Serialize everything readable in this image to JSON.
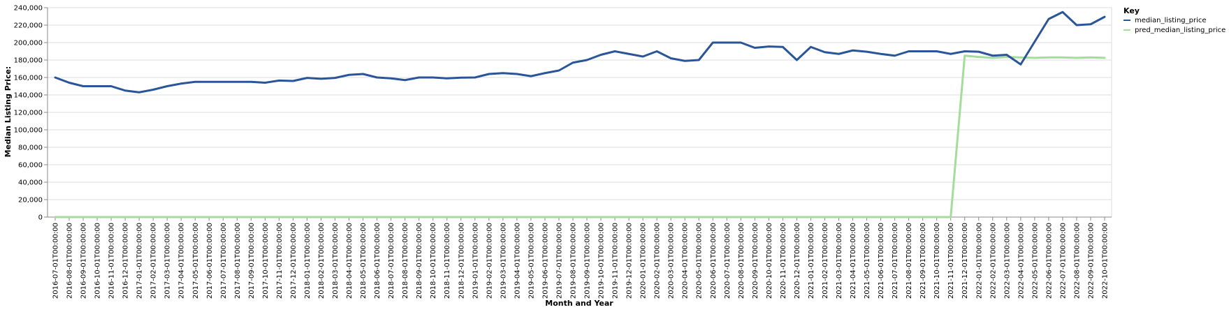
{
  "chart_data": {
    "type": "line",
    "xlabel": "Month and Year",
    "ylabel": "Median Listing Price:",
    "ylim": [
      0,
      240000
    ],
    "yticks": [
      0,
      20000,
      40000,
      60000,
      80000,
      100000,
      120000,
      140000,
      160000,
      180000,
      200000,
      220000,
      240000
    ],
    "ytick_labels": [
      "0",
      "20,000",
      "40,000",
      "60,000",
      "80,000",
      "100,000",
      "120,000",
      "140,000",
      "160,000",
      "180,000",
      "200,000",
      "220,000",
      "240,000"
    ],
    "grid": true,
    "legend_title": "Key",
    "legend_position": "top-right",
    "x": [
      "2016-07-01T00:00:00",
      "2016-08-01T00:00:00",
      "2016-09-01T00:00:00",
      "2016-10-01T00:00:00",
      "2016-11-01T00:00:00",
      "2016-12-01T00:00:00",
      "2017-01-01T00:00:00",
      "2017-02-01T00:00:00",
      "2017-03-01T00:00:00",
      "2017-04-01T00:00:00",
      "2017-05-01T00:00:00",
      "2017-06-01T00:00:00",
      "2017-07-01T00:00:00",
      "2017-08-01T00:00:00",
      "2017-09-01T00:00:00",
      "2017-10-01T00:00:00",
      "2017-11-01T00:00:00",
      "2017-12-01T00:00:00",
      "2018-01-01T00:00:00",
      "2018-02-01T00:00:00",
      "2018-03-01T00:00:00",
      "2018-04-01T00:00:00",
      "2018-05-01T00:00:00",
      "2018-06-01T00:00:00",
      "2018-07-01T00:00:00",
      "2018-08-01T00:00:00",
      "2018-09-01T00:00:00",
      "2018-10-01T00:00:00",
      "2018-11-01T00:00:00",
      "2018-12-01T00:00:00",
      "2019-01-01T00:00:00",
      "2019-02-01T00:00:00",
      "2019-03-01T00:00:00",
      "2019-04-01T00:00:00",
      "2019-05-01T00:00:00",
      "2019-06-01T00:00:00",
      "2019-07-01T00:00:00",
      "2019-08-01T00:00:00",
      "2019-09-01T00:00:00",
      "2019-10-01T00:00:00",
      "2019-11-01T00:00:00",
      "2019-12-01T00:00:00",
      "2020-01-01T00:00:00",
      "2020-02-01T00:00:00",
      "2020-03-01T00:00:00",
      "2020-04-01T00:00:00",
      "2020-05-01T00:00:00",
      "2020-06-01T00:00:00",
      "2020-07-01T00:00:00",
      "2020-08-01T00:00:00",
      "2020-09-01T00:00:00",
      "2020-10-01T00:00:00",
      "2020-11-01T00:00:00",
      "2020-12-01T00:00:00",
      "2021-01-01T00:00:00",
      "2021-02-01T00:00:00",
      "2021-03-01T00:00:00",
      "2021-04-01T00:00:00",
      "2021-05-01T00:00:00",
      "2021-06-01T00:00:00",
      "2021-07-01T00:00:00",
      "2021-08-01T00:00:00",
      "2021-09-01T00:00:00",
      "2021-10-01T00:00:00",
      "2021-11-01T00:00:00",
      "2021-12-01T00:00:00",
      "2022-01-01T00:00:00",
      "2022-02-01T00:00:00",
      "2022-03-01T00:00:00",
      "2022-04-01T00:00:00",
      "2022-05-01T00:00:00",
      "2022-06-01T00:00:00",
      "2022-07-01T00:00:00",
      "2022-08-01T00:00:00",
      "2022-09-01T00:00:00",
      "2022-10-01T00:00:00"
    ],
    "series": [
      {
        "name": "median_listing_price",
        "color": "#2a5599",
        "values": [
          160000,
          154000,
          150000,
          150000,
          150000,
          145000,
          143000,
          146000,
          150000,
          153000,
          155000,
          155000,
          155000,
          155000,
          155000,
          154000,
          156500,
          156000,
          159500,
          158500,
          159500,
          163000,
          164000,
          160000,
          159000,
          157000,
          160000,
          160000,
          159000,
          159800,
          160000,
          164000,
          165000,
          164000,
          161500,
          165000,
          168000,
          177000,
          180000,
          186000,
          190000,
          187000,
          184000,
          190000,
          182000,
          179000,
          180000,
          200000,
          200000,
          200000,
          194000,
          195500,
          195000,
          180000,
          195000,
          189000,
          187000,
          191000,
          189500,
          187000,
          185000,
          190000,
          190000,
          190000,
          187000,
          190000,
          189500,
          185000,
          186000,
          175000,
          201000,
          227000,
          235000,
          220000,
          221000,
          229500
        ]
      },
      {
        "name": "pred_median_listing_price",
        "color": "#a4dc9a",
        "values": [
          0,
          0,
          0,
          0,
          0,
          0,
          0,
          0,
          0,
          0,
          0,
          0,
          0,
          0,
          0,
          0,
          0,
          0,
          0,
          0,
          0,
          0,
          0,
          0,
          0,
          0,
          0,
          0,
          0,
          0,
          0,
          0,
          0,
          0,
          0,
          0,
          0,
          0,
          0,
          0,
          0,
          0,
          0,
          0,
          0,
          0,
          0,
          0,
          0,
          0,
          0,
          0,
          0,
          0,
          0,
          0,
          0,
          0,
          0,
          0,
          0,
          0,
          0,
          0,
          0,
          185000,
          183500,
          182500,
          183500,
          183000,
          182500,
          183000,
          183000,
          182500,
          183000,
          182500
        ]
      }
    ]
  }
}
